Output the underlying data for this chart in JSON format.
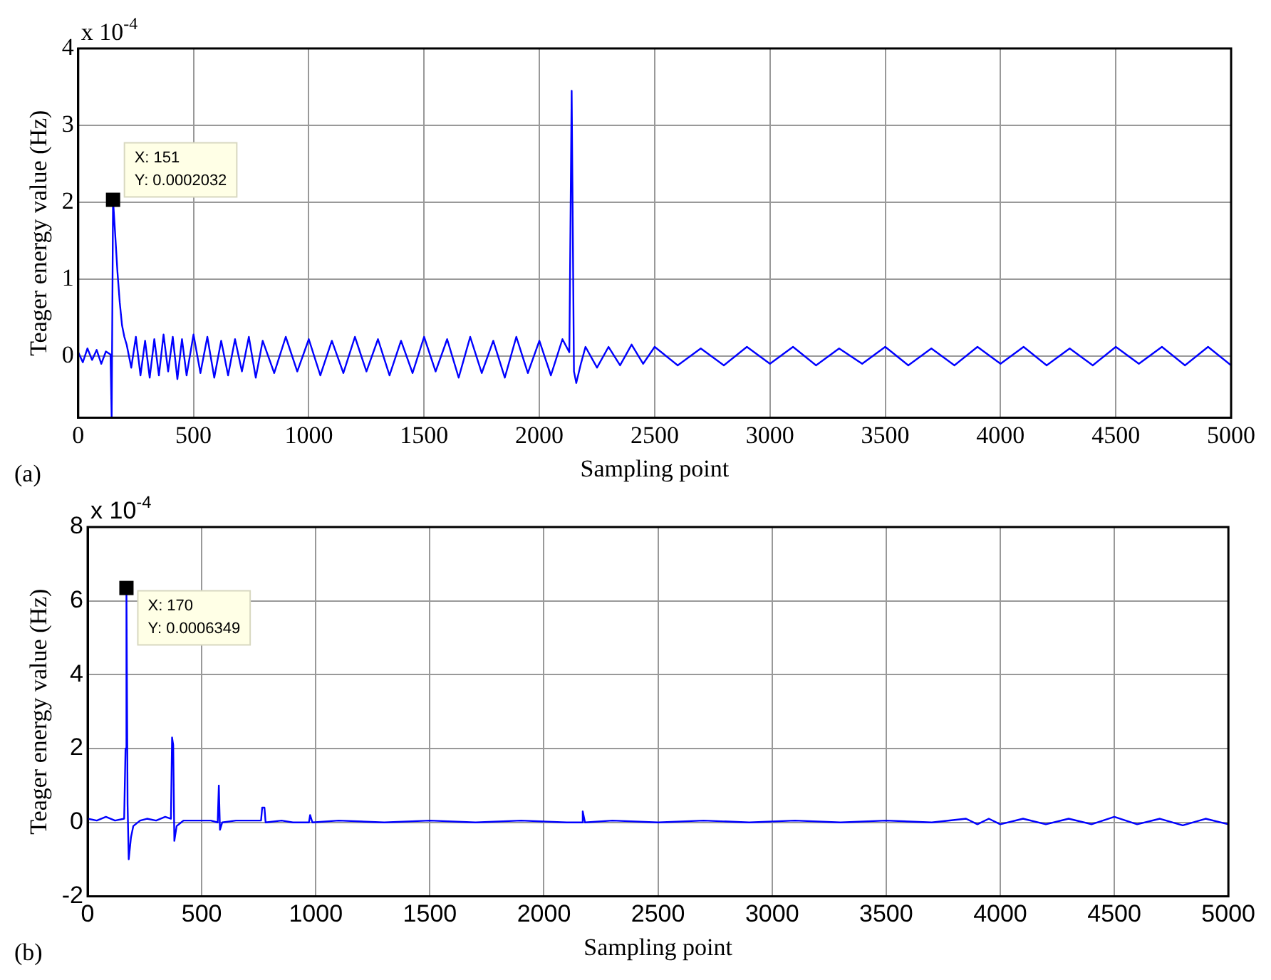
{
  "chart_data": [
    {
      "type": "line",
      "xlabel": "Sampling point",
      "ylabel": "Teager energy value (Hz)",
      "annotations": [
        "x 10$^{-4}$",
        "(a)",
        {
          "text": "X: 151\nY: 0.0002032",
          "x": 151,
          "y": 2.032
        }
      ],
      "series": [
        {
          "color": "#0000ff",
          "x": [
            0,
            20,
            40,
            60,
            80,
            100,
            120,
            140,
            145,
            151,
            160,
            170,
            180,
            190,
            200,
            210,
            230,
            250,
            270,
            290,
            310,
            330,
            350,
            370,
            390,
            410,
            430,
            450,
            470,
            500,
            530,
            560,
            590,
            620,
            650,
            680,
            710,
            740,
            770,
            800,
            850,
            900,
            950,
            1000,
            1050,
            1100,
            1150,
            1200,
            1250,
            1300,
            1350,
            1400,
            1450,
            1500,
            1550,
            1600,
            1650,
            1700,
            1750,
            1800,
            1850,
            1900,
            1950,
            2000,
            2050,
            2100,
            2130,
            2140,
            2150,
            2160,
            2180,
            2200,
            2250,
            2300,
            2350,
            2400,
            2450,
            2500,
            2600,
            2700,
            2800,
            2900,
            3000,
            3100,
            3200,
            3300,
            3400,
            3500,
            3600,
            3700,
            3800,
            3900,
            4000,
            4100,
            4200,
            4300,
            4400,
            4500,
            4600,
            4700,
            4800,
            4900,
            5000
          ],
          "values": [
            0.05,
            -0.08,
            0.1,
            -0.05,
            0.08,
            -0.1,
            0.06,
            0.02,
            -0.8,
            2.032,
            1.6,
            1.1,
            0.7,
            0.4,
            0.25,
            0.15,
            -0.15,
            0.25,
            -0.25,
            0.2,
            -0.28,
            0.22,
            -0.25,
            0.28,
            -0.2,
            0.25,
            -0.3,
            0.22,
            -0.25,
            0.28,
            -0.22,
            0.25,
            -0.28,
            0.2,
            -0.25,
            0.22,
            -0.2,
            0.25,
            -0.28,
            0.2,
            -0.22,
            0.25,
            -0.2,
            0.22,
            -0.25,
            0.2,
            -0.22,
            0.25,
            -0.2,
            0.22,
            -0.25,
            0.2,
            -0.22,
            0.25,
            -0.2,
            0.22,
            -0.28,
            0.25,
            -0.22,
            0.2,
            -0.28,
            0.25,
            -0.22,
            0.2,
            -0.25,
            0.22,
            0.05,
            3.45,
            -0.2,
            -0.35,
            -0.1,
            0.12,
            -0.15,
            0.12,
            -0.12,
            0.15,
            -0.1,
            0.12,
            -0.12,
            0.1,
            -0.12,
            0.12,
            -0.1,
            0.12,
            -0.12,
            0.1,
            -0.1,
            0.12,
            -0.12,
            0.1,
            -0.12,
            0.12,
            -0.1,
            0.12,
            -0.12,
            0.1,
            -0.12,
            0.12,
            -0.1,
            0.12,
            -0.12,
            0.12,
            -0.12
          ]
        }
      ],
      "xlim": [
        0,
        5000
      ],
      "xticks": [
        0,
        500,
        1000,
        1500,
        2000,
        2500,
        3000,
        3500,
        4000,
        4500,
        5000
      ],
      "ylim": [
        -0.8,
        4
      ],
      "yticks": [
        0,
        1,
        2,
        3,
        4
      ],
      "grid": true,
      "legend": false,
      "marker": "none",
      "line_style": "solid"
    },
    {
      "type": "line",
      "xlabel": "Sampling point",
      "ylabel": "Teager energy value (Hz)",
      "annotations": [
        "x 10$^{-4}$",
        "(b)",
        {
          "text": "X: 170\nY: 0.0006349",
          "x": 170,
          "y": 6.349
        }
      ],
      "series": [
        {
          "color": "#0000ff",
          "x": [
            0,
            40,
            80,
            120,
            160,
            166,
            170,
            175,
            180,
            190,
            200,
            230,
            260,
            300,
            340,
            365,
            370,
            375,
            380,
            390,
            420,
            480,
            540,
            570,
            575,
            580,
            590,
            650,
            700,
            760,
            765,
            775,
            780,
            850,
            900,
            970,
            975,
            985,
            1100,
            1300,
            1500,
            1700,
            1900,
            2100,
            2165,
            2170,
            2180,
            2300,
            2500,
            2700,
            2900,
            3100,
            3300,
            3500,
            3700,
            3850,
            3900,
            3950,
            4000,
            4100,
            4200,
            4300,
            4400,
            4500,
            4600,
            4700,
            4800,
            4900,
            5000
          ],
          "values": [
            0.1,
            0.05,
            0.15,
            0.05,
            0.1,
            2.0,
            6.349,
            0.5,
            -1.0,
            -0.4,
            -0.1,
            0.05,
            0.1,
            0.05,
            0.15,
            0.1,
            2.3,
            2.1,
            -0.5,
            -0.1,
            0.05,
            0.05,
            0.05,
            0.0,
            1.0,
            -0.2,
            0.0,
            0.05,
            0.05,
            0.05,
            0.4,
            0.4,
            0.0,
            0.05,
            0.0,
            0.0,
            0.2,
            0.0,
            0.05,
            0.0,
            0.05,
            0.0,
            0.05,
            0.0,
            0.0,
            0.3,
            0.0,
            0.05,
            0.0,
            0.05,
            0.0,
            0.05,
            0.0,
            0.05,
            0.0,
            0.1,
            -0.05,
            0.1,
            -0.05,
            0.1,
            -0.05,
            0.1,
            -0.05,
            0.15,
            -0.05,
            0.1,
            -0.08,
            0.1,
            -0.05
          ]
        }
      ],
      "xlim": [
        0,
        5000
      ],
      "xticks": [
        0,
        500,
        1000,
        1500,
        2000,
        2500,
        3000,
        3500,
        4000,
        4500,
        5000
      ],
      "ylim": [
        -2,
        8
      ],
      "yticks": [
        -2,
        0,
        2,
        4,
        6,
        8
      ],
      "grid": true,
      "legend": false,
      "marker": "none",
      "line_style": "solid"
    }
  ]
}
